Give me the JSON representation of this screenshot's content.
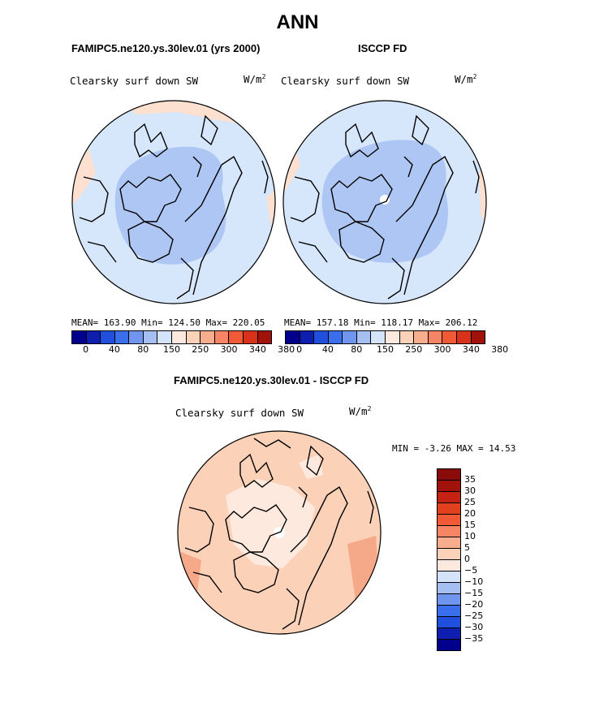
{
  "title": "ANN",
  "panel_left": {
    "header": "FAMIPC5.ne120.ys.30lev.01 (yrs 2000)",
    "variable": "Clearsky surf down SW",
    "units": "W/m",
    "units_sup": "2",
    "stats": "MEAN= 163.90   Min= 124.50   Max= 220.05"
  },
  "panel_right": {
    "header": "ISCCP FD",
    "variable": "Clearsky surf down SW",
    "units": "W/m",
    "units_sup": "2",
    "stats": "MEAN= 157.18   Min= 118.17   Max= 206.12"
  },
  "colorbar_top": {
    "ticks": [
      "0",
      "40",
      "80",
      "150",
      "250",
      "300",
      "340",
      "380"
    ],
    "colors": [
      "#00008c",
      "#0e1fb0",
      "#1f4fdc",
      "#3a6eea",
      "#6f95ee",
      "#a6bff2",
      "#d4e3fa",
      "#fde9dd",
      "#fbd1b8",
      "#f8ae8e",
      "#f58564",
      "#f05a37",
      "#d8331a",
      "#a0120a"
    ]
  },
  "panel_diff": {
    "header": "FAMIPC5.ne120.ys.30lev.01 - ISCCP FD",
    "variable": "Clearsky surf down SW",
    "units": "W/m",
    "units_sup": "2",
    "stats": "MIN =  -3.26 MAX =  14.53"
  },
  "colorbar_diff": {
    "ticks": [
      "35",
      "30",
      "25",
      "20",
      "15",
      "10",
      "5",
      "0",
      "−5",
      "−10",
      "−15",
      "−20",
      "−25",
      "−30",
      "−35"
    ],
    "colors": [
      "#a0120a",
      "#c42212",
      "#e0401d",
      "#f05a37",
      "#f58564",
      "#f8ae8e",
      "#fbd1b8",
      "#fde9dd",
      "#d4e3fa",
      "#a6bff2",
      "#6f95ee",
      "#3a6eea",
      "#1f4fdc",
      "#0e1fb0",
      "#00008c"
    ]
  },
  "map_colors": {
    "outer": "#d6e6fb",
    "inner": "#aec6f3",
    "edge": "#fde0cf",
    "diff_base": "#fbd1b8",
    "diff_light": "#fde9dd",
    "diff_dark": "#f6a988"
  }
}
